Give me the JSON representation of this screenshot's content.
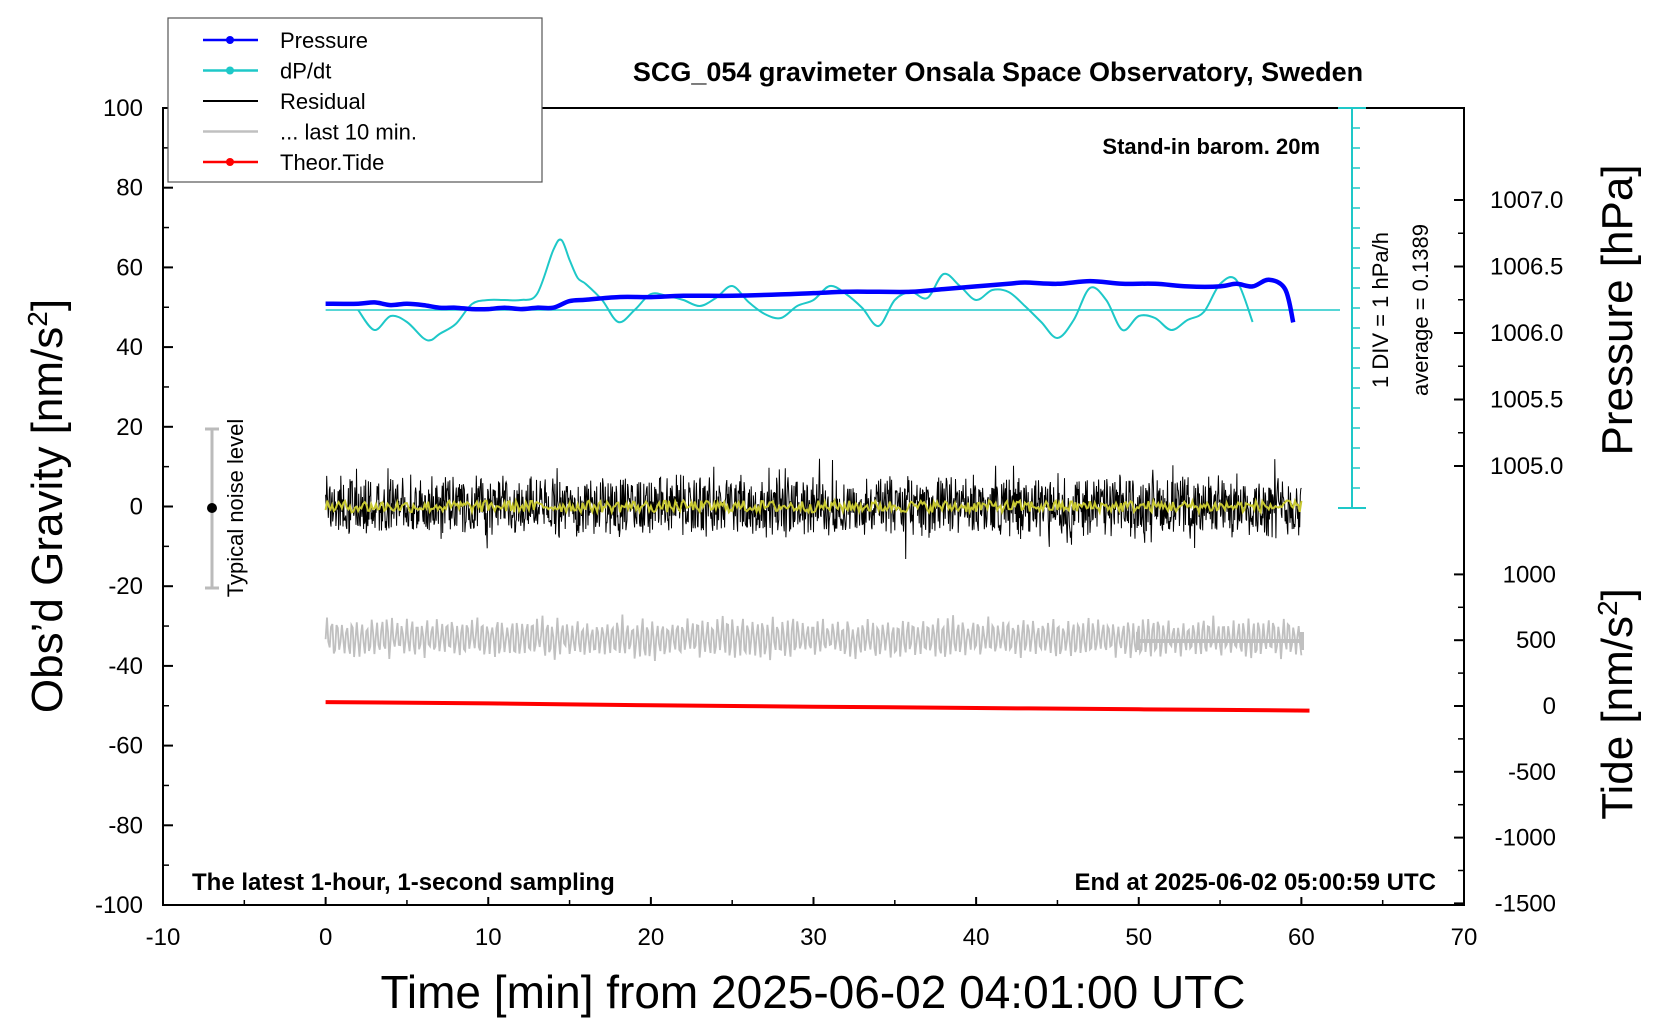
{
  "chart_data": {
    "type": "line",
    "title": "SCG_054 gravimeter Onsala Space Observatory, Sweden",
    "annotation_top_right": "Stand-in barom. 20m",
    "annotation_bottom_left": "The latest 1-hour, 1-second sampling",
    "annotation_bottom_right": "End at 2025-06-02 05:00:59 UTC",
    "noise_label": "Typical noise level",
    "div_label": "1 DIV = 1 hPa/h",
    "average_label": "average = 0.1389",
    "xlabel": "Time [min] from 2025-06-02 04:01:00 UTC",
    "ylabel_left": "Obs’d Gravity [nm/s",
    "ylabel_left_sup": "2",
    "ylabel_left_end": "]",
    "ylabel_right_pressure": "Pressure [hPa]",
    "ylabel_right_tide": "Tide [nm/s",
    "ylabel_right_tide_sup": "2",
    "ylabel_right_tide_end": "]",
    "xlim": [
      -10,
      70
    ],
    "ylim_left": [
      -100,
      100
    ],
    "x_ticks": [
      "-10",
      "0",
      "10",
      "20",
      "30",
      "40",
      "50",
      "60",
      "70"
    ],
    "y_left_ticks": [
      "100",
      "80",
      "60",
      "40",
      "20",
      "0",
      "-20",
      "-40",
      "-60",
      "-80",
      "-100"
    ],
    "pressure_ticks": [
      "1007.0",
      "1006.5",
      "1006.0",
      "1005.5",
      "1005.0"
    ],
    "tide_ticks": [
      "1000",
      "500",
      "0",
      "-500",
      "-1000",
      "-1500"
    ],
    "legend": [
      {
        "label": "Pressure",
        "color": "#0000ff",
        "marker": true
      },
      {
        "label": "dP/dt",
        "color": "#1ec8c8",
        "marker": true
      },
      {
        "label": "Residual",
        "color": "#000000",
        "marker": false
      },
      {
        "label": "... last 10 min.",
        "color": "#c0c0c0",
        "marker": false
      },
      {
        "label": "Theor.Tide",
        "color": "#ff0000",
        "marker": true
      }
    ],
    "series": [
      {
        "name": "Pressure",
        "color": "#0000ff",
        "axis": "pressure_hPa",
        "x": [
          0,
          2,
          3,
          4,
          5,
          6,
          7,
          8,
          9,
          10,
          11,
          12,
          13,
          14,
          15,
          16,
          18,
          20,
          22,
          25,
          28,
          30,
          32,
          34,
          36,
          38,
          40,
          42,
          43,
          45,
          47,
          49,
          51,
          53,
          55,
          56,
          57,
          58,
          59,
          59.5
        ],
        "y": [
          1006.22,
          1006.22,
          1006.23,
          1006.21,
          1006.22,
          1006.21,
          1006.19,
          1006.19,
          1006.18,
          1006.18,
          1006.19,
          1006.18,
          1006.19,
          1006.19,
          1006.24,
          1006.25,
          1006.27,
          1006.27,
          1006.28,
          1006.28,
          1006.29,
          1006.3,
          1006.31,
          1006.31,
          1006.31,
          1006.33,
          1006.35,
          1006.37,
          1006.38,
          1006.37,
          1006.39,
          1006.37,
          1006.37,
          1006.35,
          1006.35,
          1006.37,
          1006.35,
          1006.4,
          1006.33,
          1006.08
        ]
      },
      {
        "name": "dP/dt",
        "color": "#1ec8c8",
        "axis": "dpdt_hPa_per_h",
        "x": [
          2,
          3,
          4,
          5,
          6,
          6.5,
          7,
          8,
          9,
          10,
          11,
          12,
          13,
          14,
          14.5,
          15,
          15.5,
          16,
          17,
          18,
          19,
          20,
          21,
          22,
          23,
          24,
          25,
          26,
          27,
          28,
          29,
          30,
          31,
          32,
          33,
          34,
          35,
          36,
          37,
          38,
          39,
          40,
          41,
          42,
          43,
          44,
          45,
          46,
          47,
          48,
          49,
          50,
          51,
          52,
          53,
          54,
          55,
          56,
          57
        ],
        "y": [
          0.0,
          -1.0,
          -0.3,
          -0.6,
          -1.4,
          -1.5,
          -1.2,
          -0.7,
          0.3,
          0.5,
          0.5,
          0.5,
          0.8,
          3.0,
          3.5,
          2.5,
          1.6,
          1.3,
          0.5,
          -0.6,
          0.0,
          0.8,
          0.7,
          0.5,
          0.2,
          0.6,
          1.2,
          0.4,
          -0.2,
          -0.4,
          0.2,
          0.5,
          1.2,
          0.8,
          0.1,
          -0.8,
          0.5,
          0.9,
          0.6,
          1.8,
          1.2,
          0.5,
          1.0,
          0.9,
          0.2,
          -0.6,
          -1.4,
          -0.5,
          1.1,
          0.5,
          -1.0,
          -0.3,
          -0.4,
          -1.0,
          -0.5,
          -0.1,
          1.3,
          1.5,
          -0.6
        ]
      },
      {
        "name": "Residual",
        "color": "#000000",
        "axis": "gravity_nm_s2",
        "note_shape": "noise band",
        "x": [
          0,
          60
        ],
        "y": [
          -3,
          3
        ]
      },
      {
        "name": "... last 10 min.",
        "color": "#c0c0c0",
        "axis": "gravity_nm_s2",
        "x": [
          50,
          60
        ],
        "y": [
          -33,
          -33
        ]
      },
      {
        "name": "Theor.Tide",
        "color": "#ff0000",
        "axis": "tide_nm_s2",
        "x": [
          0,
          10,
          20,
          30,
          40,
          50,
          60.5
        ],
        "y": [
          30,
          20,
          5,
          -5,
          -15,
          -25,
          -35
        ]
      }
    ],
    "colors": {
      "pressure": "#0000ff",
      "dpdt": "#1ec8c8",
      "residual": "#000000",
      "residual_smooth": "#c8c832",
      "last10": "#c0c0c0",
      "tide": "#ff0000"
    }
  }
}
